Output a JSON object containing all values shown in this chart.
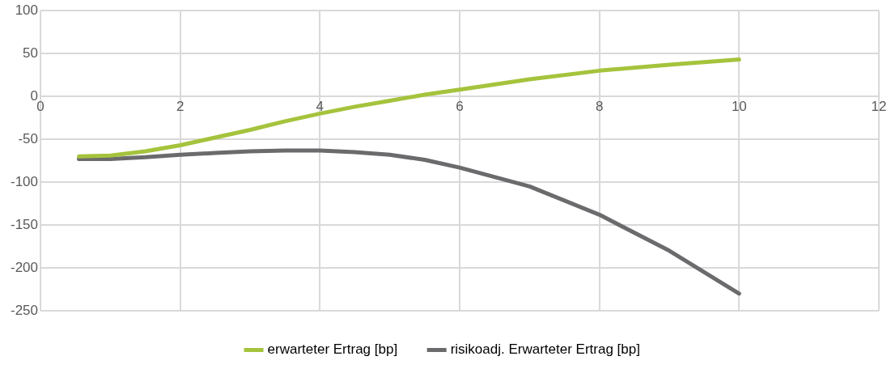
{
  "chart_data": {
    "type": "line",
    "x": [
      0.55,
      1,
      1.5,
      2,
      2.5,
      3,
      3.5,
      4,
      4.5,
      5,
      5.5,
      6,
      7,
      8,
      9,
      10
    ],
    "series": [
      {
        "name": "erwarteter Ertrag [bp]",
        "color": "#a5c33c",
        "values": [
          -70,
          -69,
          -64,
          -57,
          -48,
          -39,
          -29,
          -20,
          -12,
          -5,
          2,
          8,
          20,
          30,
          37,
          43
        ]
      },
      {
        "name": "risikoadj. Erwarteter Ertrag [bp]",
        "color": "#6b6b6e",
        "values": [
          -73,
          -73,
          -71,
          -68,
          -66,
          -64,
          -63,
          -63,
          -65,
          -68,
          -74,
          -83,
          -105,
          -138,
          -180,
          -230
        ]
      }
    ],
    "xlim": [
      0,
      12
    ],
    "xticks": [
      0,
      2,
      4,
      6,
      8,
      10,
      12
    ],
    "ylim": [
      -250,
      100
    ],
    "yticks": [
      -250,
      -200,
      -150,
      -100,
      -50,
      0,
      50,
      100
    ],
    "grid": true,
    "legend": "bottom",
    "marker": "none",
    "line_style": "solid"
  }
}
